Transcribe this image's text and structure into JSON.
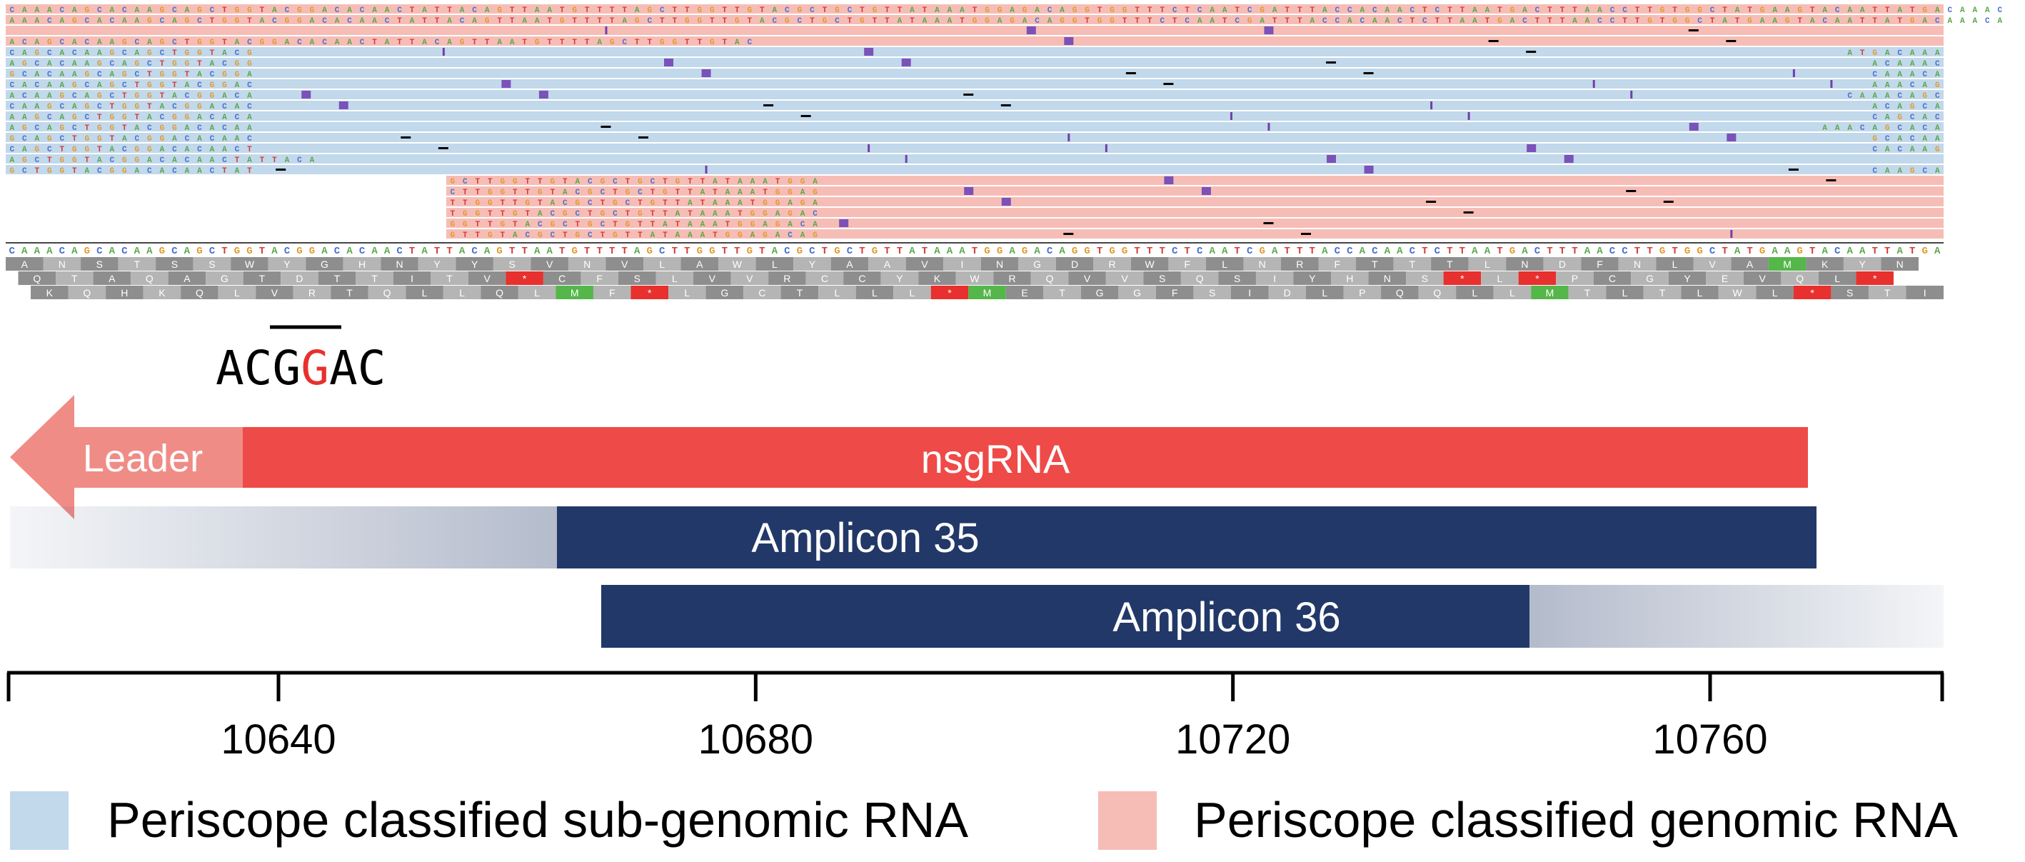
{
  "track_labels": {
    "leader": "Leader",
    "nsgrna": "nsgRNA",
    "amplicon35": "Amplicon 35",
    "amplicon36": "Amplicon 36"
  },
  "trs_motif": {
    "part1": "ACG",
    "mismatch": "G",
    "part2": "AC"
  },
  "axis": {
    "ticks": [
      {
        "pos": 10640,
        "label": "10640"
      },
      {
        "pos": 10680,
        "label": "10680"
      },
      {
        "pos": 10720,
        "label": "10720"
      },
      {
        "pos": 10760,
        "label": "10760"
      }
    ]
  },
  "legend": {
    "sgrna": "Periscope classified sub-genomic RNA",
    "grna": "Periscope classified genomic RNA"
  },
  "reference_sequence": "CAAACAGCACAAGCAGCTGGTACGGACACAACTATTACAGTTAATGTTTTAGCTTGGTTGTACGCTGCTGTTATAAATGGAGACAGGTGGTTTCTCAATCGATTTACCACAACTCTTAATGACTTTAACCTTGTGGCTATGAAGTACAATTATGA",
  "translation": {
    "frame1": "ANSTSSWYGHNYYSVNVLAWLYAAVINGDRWFLNRFTTTLNDFNLVAMKYNY",
    "frame2": "QTAQAGTDTTITV*CFSLVVRCCYKWRQVVSQSIYHNS*L*PCGYEVQL*",
    "frame3": "KQHKQLVRTQLLQLMF*LGCTLLL*METGGFSIDLPQQLLMTLTLWL*STIM"
  },
  "colors": {
    "sgrna_read": "#c2d8eb",
    "grna_read": "#f6bdb6",
    "leader": "#f08c86",
    "nsgrna": "#ee4a47",
    "amplicon": "#223868",
    "trs_mismatch": "#e8302e",
    "base_A": "#5aa84a",
    "base_C": "#4a6fd0",
    "base_G": "#e09a2c",
    "base_T": "#d33a3a",
    "codon_stop": "#e8302e",
    "codon_start": "#55b64a"
  }
}
